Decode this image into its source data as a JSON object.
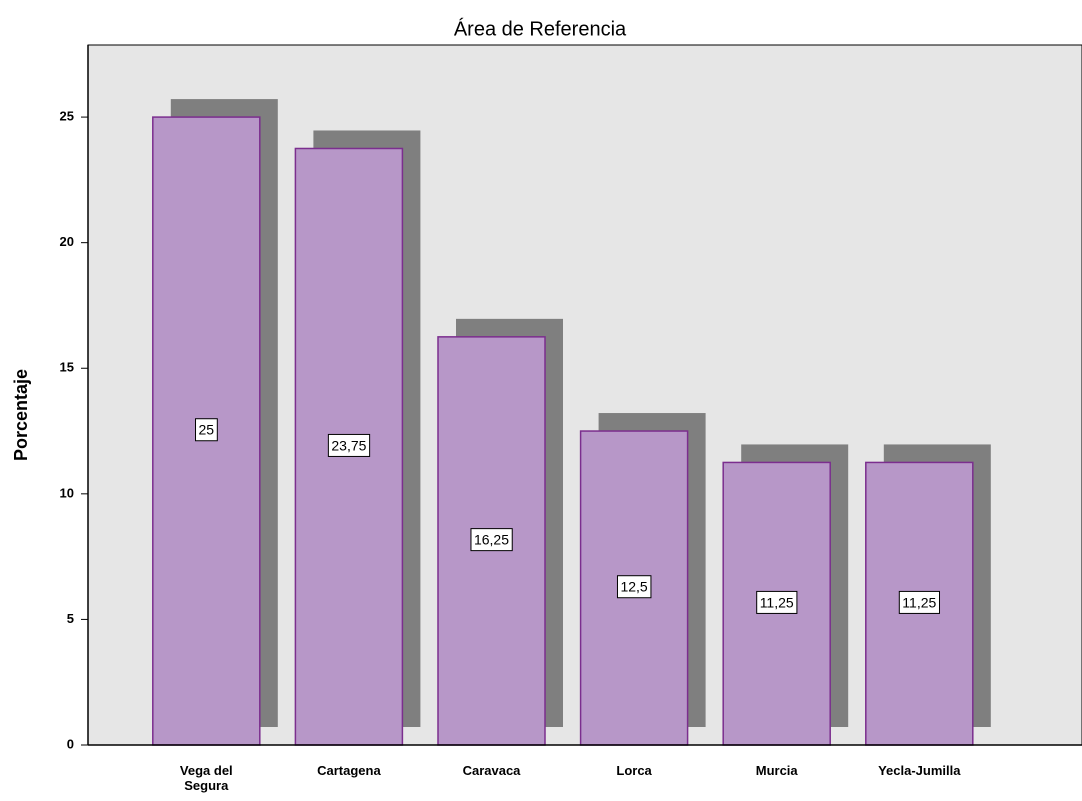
{
  "chart_data": {
    "type": "bar",
    "title": "Área de Referencia",
    "y_label": "Porcentaje",
    "categories": [
      "Vega del Segura",
      "Cartagena",
      "Caravaca",
      "Lorca",
      "Murcia",
      "Yecla-Jumilla"
    ],
    "values": [
      25,
      23.75,
      16.25,
      12.5,
      11.25,
      11.25
    ],
    "value_labels": [
      "25",
      "23,75",
      "16,25",
      "12,5",
      "11,25",
      "11,25"
    ],
    "color": "#b797c8",
    "edge_color": "#7b2e8e",
    "shadow_color": "#7f7f7f",
    "background": "#e6e6e6",
    "ylim": [
      0,
      27.87
    ],
    "yticks": [
      0,
      5,
      10,
      15,
      20,
      25
    ],
    "grid": false
  }
}
